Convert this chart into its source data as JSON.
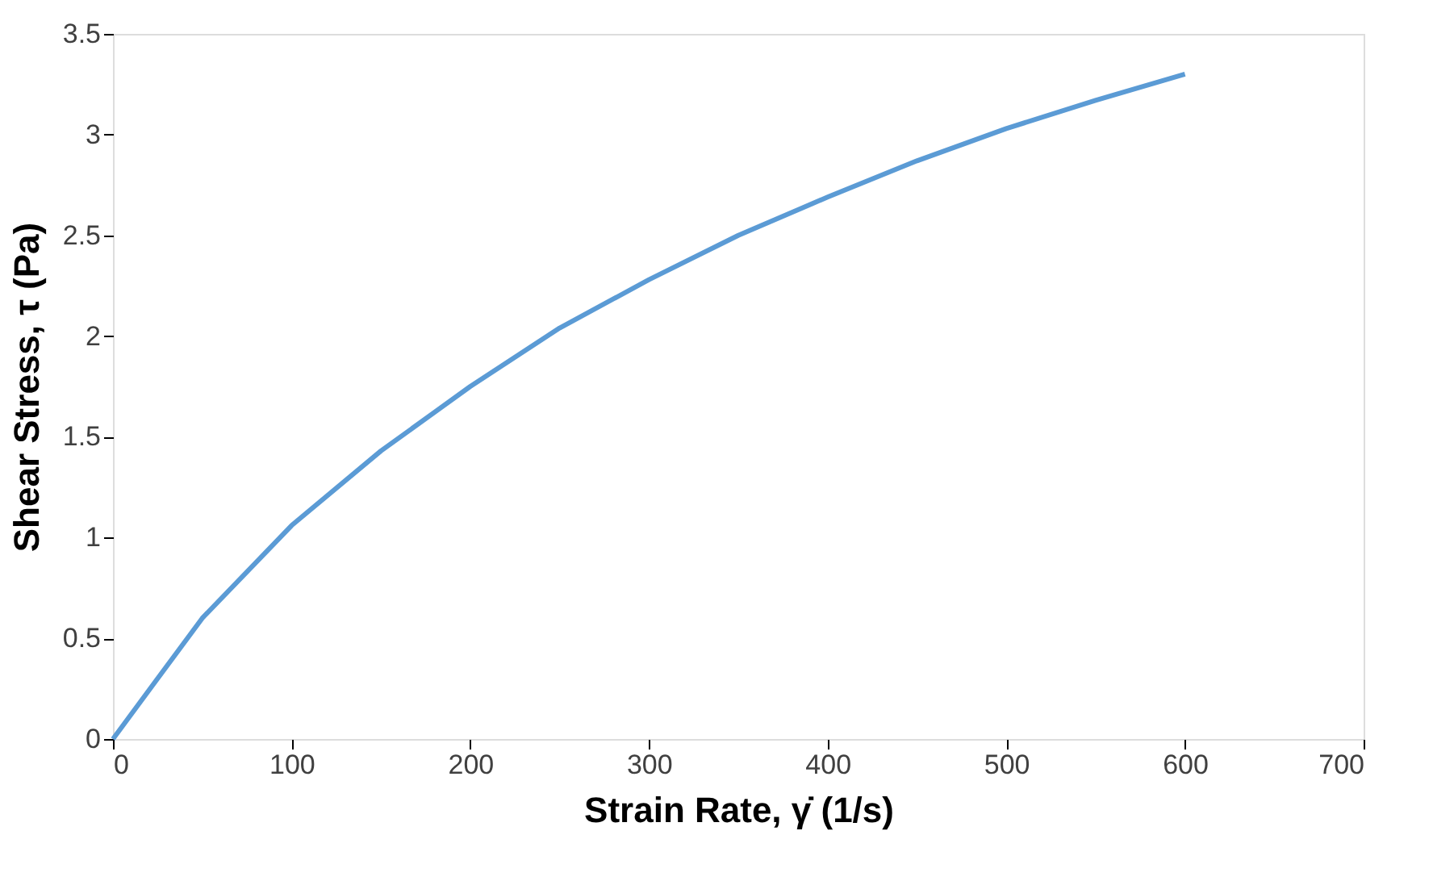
{
  "chart_data": {
    "type": "line",
    "xlabel": "Strain Rate, γ̇ (1/s)",
    "ylabel": "Shear Stress, τ (Pa)",
    "x": [
      0,
      25,
      50,
      100,
      150,
      200,
      250,
      300,
      350,
      400,
      450,
      500,
      550,
      600
    ],
    "series": [
      {
        "color": "#5b9bd5",
        "values": [
          0,
          0.3,
          0.6,
          1.06,
          1.43,
          1.75,
          2.04,
          2.28,
          2.5,
          2.69,
          2.87,
          3.03,
          3.17,
          3.3
        ]
      }
    ],
    "xlim": [
      0,
      700
    ],
    "xticks": [
      0,
      100,
      200,
      300,
      400,
      500,
      600,
      700
    ],
    "ylim": [
      0,
      3.5
    ],
    "yticks": [
      0,
      0.5,
      1,
      1.5,
      2,
      2.5,
      3,
      3.5
    ],
    "grid": false,
    "legend": false,
    "marker": "none",
    "line_style": "solid"
  }
}
